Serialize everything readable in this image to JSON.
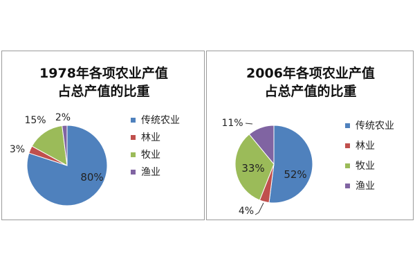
{
  "chart_data": [
    {
      "type": "pie",
      "title_line1": "1978年各项农业产值",
      "title_line2": "占总产值的比重",
      "categories": [
        "传统农业",
        "林业",
        "牧业",
        "渔业"
      ],
      "values": [
        80,
        3,
        15,
        2
      ],
      "value_labels": [
        "80%",
        "3%",
        "15%",
        "2%"
      ],
      "colors": [
        "#4f81bd",
        "#c0504d",
        "#9bbb59",
        "#8064a2"
      ],
      "legend_position": "right"
    },
    {
      "type": "pie",
      "title_line1": "2006年各项农业产值",
      "title_line2": "占总产值的比重",
      "categories": [
        "传统农业",
        "林业",
        "牧业",
        "渔业"
      ],
      "values": [
        52,
        4,
        33,
        11
      ],
      "value_labels": [
        "52%",
        "4%",
        "33%",
        "11%"
      ],
      "colors": [
        "#4f81bd",
        "#c0504d",
        "#9bbb59",
        "#8064a2"
      ],
      "legend_position": "right"
    }
  ]
}
